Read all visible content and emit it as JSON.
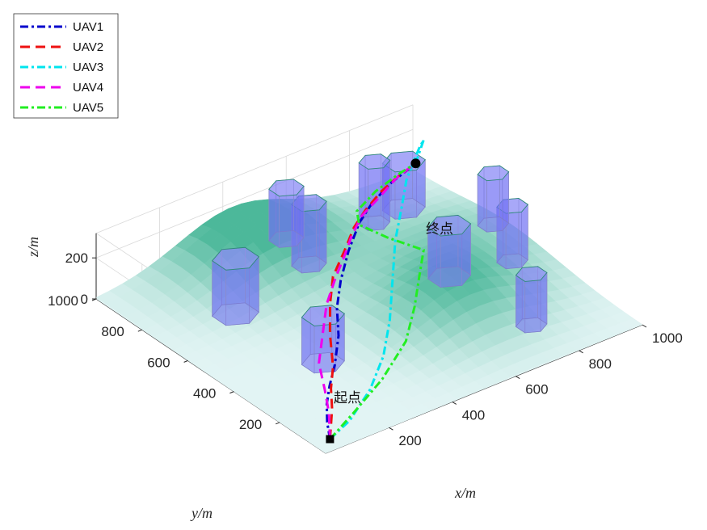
{
  "chart_data": {
    "type": "line",
    "dimension": "3d",
    "xlabel": "x/m",
    "ylabel": "y/m",
    "zlabel": "z/m",
    "xlim": [
      0,
      1000
    ],
    "ylim": [
      0,
      1000
    ],
    "zlim": [
      0,
      320
    ],
    "x_ticks": [
      200,
      400,
      600,
      800,
      1000
    ],
    "y_ticks": [
      200,
      400,
      600,
      800,
      1000
    ],
    "z_ticks": [
      0,
      200
    ],
    "grid": true,
    "legend_position": "top-left",
    "start_label": "起点",
    "end_label": "终点",
    "start_point": [
      50,
      50,
      0
    ],
    "end_point": [
      900,
      850,
      210
    ],
    "obstacles": [
      {
        "center": [
          520,
          790
        ],
        "radius": 45,
        "height": 300
      },
      {
        "center": [
          550,
          930
        ],
        "radius": 45,
        "height": 250
      },
      {
        "center": [
          760,
          510
        ],
        "radius": 55,
        "height": 250
      },
      {
        "center": [
          770,
          850
        ],
        "radius": 40,
        "height": 300
      },
      {
        "center": [
          870,
          860
        ],
        "radius": 55,
        "height": 230
      },
      {
        "center": [
          780,
          180
        ],
        "radius": 40,
        "height": 250
      },
      {
        "center": [
          930,
          470
        ],
        "radius": 40,
        "height": 270
      },
      {
        "center": [
          1000,
          650
        ],
        "radius": 40,
        "height": 250
      },
      {
        "center": [
          260,
          370
        ],
        "radius": 55,
        "height": 230
      },
      {
        "center": [
          230,
          710
        ],
        "radius": 60,
        "height": 270
      }
    ],
    "terrain_peaks": [
      {
        "center": [
          430,
          920
        ],
        "height": 200,
        "spread": 170
      },
      {
        "center": [
          660,
          360
        ],
        "height": 140,
        "spread": 150
      },
      {
        "center": [
          850,
          600
        ],
        "height": 80,
        "spread": 180
      }
    ],
    "series": [
      {
        "name": "UAV1",
        "color": "#0000cc",
        "dash": "dashdot",
        "points": [
          [
            50,
            50,
            0
          ],
          [
            70,
            90,
            40
          ],
          [
            105,
            140,
            70
          ],
          [
            150,
            190,
            90
          ],
          [
            210,
            250,
            110
          ],
          [
            280,
            330,
            150
          ],
          [
            340,
            420,
            180
          ],
          [
            410,
            500,
            210
          ],
          [
            500,
            590,
            230
          ],
          [
            600,
            680,
            240
          ],
          [
            680,
            740,
            230
          ],
          [
            780,
            800,
            220
          ],
          [
            900,
            850,
            210
          ]
        ]
      },
      {
        "name": "UAV2",
        "color": "#ee1111",
        "dash": "dashed",
        "points": [
          [
            50,
            50,
            0
          ],
          [
            100,
            110,
            70
          ],
          [
            140,
            170,
            100
          ],
          [
            190,
            230,
            130
          ],
          [
            260,
            340,
            160
          ],
          [
            340,
            450,
            175
          ],
          [
            400,
            520,
            220
          ],
          [
            480,
            580,
            250
          ],
          [
            560,
            650,
            260
          ],
          [
            640,
            710,
            250
          ],
          [
            740,
            780,
            225
          ],
          [
            820,
            820,
            215
          ],
          [
            900,
            850,
            210
          ]
        ]
      },
      {
        "name": "UAV3",
        "color": "#00e5ee",
        "dash": "dashdot",
        "points": [
          [
            50,
            50,
            0
          ],
          [
            120,
            60,
            40
          ],
          [
            220,
            110,
            90
          ],
          [
            320,
            190,
            130
          ],
          [
            420,
            300,
            160
          ],
          [
            530,
            440,
            180
          ],
          [
            640,
            580,
            200
          ],
          [
            740,
            690,
            215
          ],
          [
            820,
            780,
            230
          ],
          [
            880,
            830,
            250
          ],
          [
            920,
            860,
            270
          ],
          [
            940,
            870,
            285
          ],
          [
            900,
            850,
            210
          ]
        ]
      },
      {
        "name": "UAV4",
        "color": "#ee00ee",
        "dash": "dashed",
        "points": [
          [
            50,
            50,
            0
          ],
          [
            90,
            110,
            60
          ],
          [
            120,
            170,
            110
          ],
          [
            160,
            250,
            150
          ],
          [
            230,
            330,
            190
          ],
          [
            300,
            410,
            230
          ],
          [
            380,
            480,
            260
          ],
          [
            450,
            540,
            270
          ],
          [
            530,
            620,
            255
          ],
          [
            620,
            700,
            240
          ],
          [
            720,
            760,
            225
          ],
          [
            820,
            820,
            215
          ],
          [
            900,
            850,
            210
          ]
        ]
      },
      {
        "name": "UAV5",
        "color": "#22ee22",
        "dash": "dashdot",
        "points": [
          [
            50,
            50,
            0
          ],
          [
            150,
            80,
            50
          ],
          [
            280,
            140,
            80
          ],
          [
            420,
            230,
            110
          ],
          [
            520,
            330,
            140
          ],
          [
            600,
            420,
            170
          ],
          [
            650,
            470,
            230
          ],
          [
            600,
            560,
            255
          ],
          [
            570,
            640,
            275
          ],
          [
            620,
            720,
            250
          ],
          [
            730,
            790,
            225
          ],
          [
            830,
            830,
            215
          ],
          [
            900,
            850,
            210
          ]
        ]
      }
    ]
  }
}
